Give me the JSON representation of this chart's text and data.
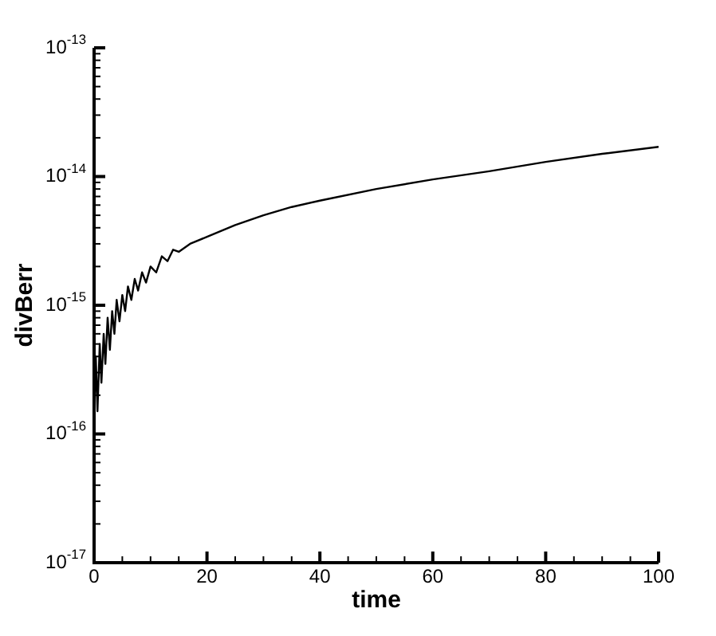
{
  "chart_data": {
    "type": "line",
    "xlabel": "time",
    "ylabel": "divBerr",
    "log": "y",
    "grid": false,
    "legend": false,
    "marker": "none",
    "line_style": "solid",
    "x": [
      0,
      0.3,
      0.6,
      1,
      1.3,
      1.7,
      2,
      2.4,
      2.8,
      3.2,
      3.6,
      4,
      4.5,
      5,
      5.5,
      6,
      6.6,
      7.2,
      7.8,
      8.5,
      9.2,
      10,
      11,
      12,
      13,
      14,
      15,
      17,
      20,
      25,
      30,
      35,
      40,
      50,
      60,
      70,
      80,
      90,
      100
    ],
    "series": [
      {
        "color": "#000000",
        "values": [
          1.2e-16,
          4e-16,
          1.5e-16,
          5e-16,
          2.5e-16,
          6e-16,
          3.5e-16,
          8e-16,
          4.5e-16,
          9e-16,
          6e-16,
          1.1e-15,
          7.5e-16,
          1.2e-15,
          9e-16,
          1.4e-15,
          1.1e-15,
          1.6e-15,
          1.3e-15,
          1.8e-15,
          1.5e-15,
          2e-15,
          1.8e-15,
          2.4e-15,
          2.2e-15,
          2.7e-15,
          2.6e-15,
          3e-15,
          3.4e-15,
          4.2e-15,
          5e-15,
          5.8e-15,
          6.5e-15,
          8e-15,
          9.5e-15,
          1.1e-14,
          1.3e-14,
          1.5e-14,
          1.7e-14
        ]
      }
    ],
    "xlim": [
      0,
      100
    ],
    "xticks": [
      0,
      {
        "value": 5,
        "label": null
      },
      {
        "value": 10,
        "label": null
      },
      {
        "value": 15,
        "label": null
      },
      20,
      {
        "value": 25,
        "label": null
      },
      {
        "value": 30,
        "label": null
      },
      {
        "value": 35,
        "label": null
      },
      40,
      {
        "value": 45,
        "label": null
      },
      {
        "value": 50,
        "label": null
      },
      {
        "value": 55,
        "label": null
      },
      60,
      {
        "value": 65,
        "label": null
      },
      {
        "value": 70,
        "label": null
      },
      {
        "value": 75,
        "label": null
      },
      80,
      {
        "value": 85,
        "label": null
      },
      {
        "value": 90,
        "label": null
      },
      {
        "value": 95,
        "label": null
      },
      100
    ],
    "ylim": [
      1e-17,
      1e-13
    ],
    "yticks": [
      {
        "value": 1e-17,
        "label": "10$^{-17}$"
      },
      {
        "value": 2e-17,
        "label": null
      },
      {
        "value": 3e-17,
        "label": null
      },
      {
        "value": 4e-17,
        "label": null
      },
      {
        "value": 5e-17,
        "label": null
      },
      {
        "value": 6e-17,
        "label": null
      },
      {
        "value": 7e-17,
        "label": null
      },
      {
        "value": 8e-17,
        "label": null
      },
      {
        "value": 9e-17,
        "label": null
      },
      {
        "value": 1e-16,
        "label": "10$^{-16}$"
      },
      {
        "value": 2e-16,
        "label": null
      },
      {
        "value": 3e-16,
        "label": null
      },
      {
        "value": 4e-16,
        "label": null
      },
      {
        "value": 5e-16,
        "label": null
      },
      {
        "value": 6e-16,
        "label": null
      },
      {
        "value": 7e-16,
        "label": null
      },
      {
        "value": 8e-16,
        "label": null
      },
      {
        "value": 9e-16,
        "label": null
      },
      {
        "value": 1e-15,
        "label": "10$^{-15}$"
      },
      {
        "value": 2e-15,
        "label": null
      },
      {
        "value": 3e-15,
        "label": null
      },
      {
        "value": 4e-15,
        "label": null
      },
      {
        "value": 5e-15,
        "label": null
      },
      {
        "value": 6e-15,
        "label": null
      },
      {
        "value": 7e-15,
        "label": null
      },
      {
        "value": 8e-15,
        "label": null
      },
      {
        "value": 9e-15,
        "label": null
      },
      {
        "value": 1e-14,
        "label": "10$^{-14}$"
      },
      {
        "value": 2e-14,
        "label": null
      },
      {
        "value": 3e-14,
        "label": null
      },
      {
        "value": 4e-14,
        "label": null
      },
      {
        "value": 5e-14,
        "label": null
      },
      {
        "value": 6e-14,
        "label": null
      },
      {
        "value": 7e-14,
        "label": null
      },
      {
        "value": 8e-14,
        "label": null
      },
      {
        "value": 9e-14,
        "label": null
      },
      {
        "value": 1e-13,
        "label": "10$^{-13}$"
      }
    ]
  }
}
